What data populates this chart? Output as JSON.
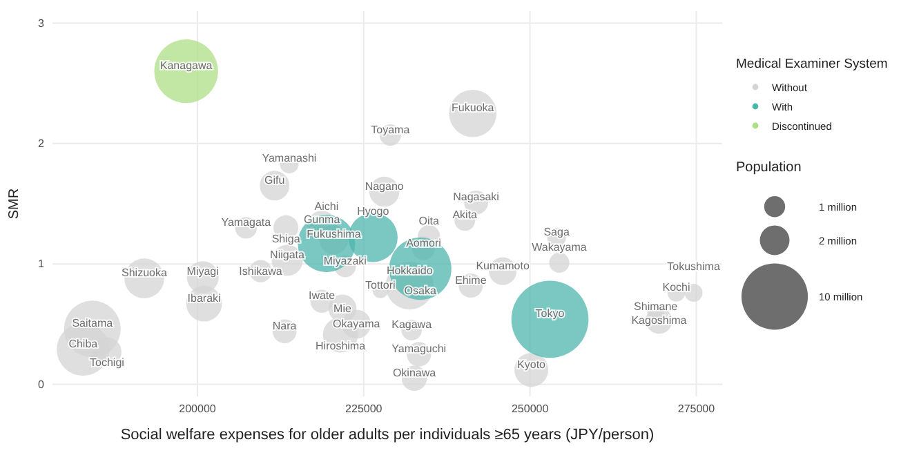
{
  "chart_data": {
    "type": "bubble",
    "xlabel": "Social welfare expenses for older adults per individuals ≥65 years (JPY/person)",
    "ylabel": "SMR",
    "legend_title": "Medical Examiner System",
    "legend": "right",
    "grid": true,
    "xlim": [
      178200,
      278900
    ],
    "xticks": [
      200000,
      225000,
      250000,
      275000
    ],
    "ylim": [
      -0.1,
      3.1
    ],
    "yticks": [
      0,
      1,
      2,
      3
    ],
    "size_legend": [
      {
        "value": 1,
        "label": "1 million"
      },
      {
        "value": 2,
        "label": "2 million"
      },
      {
        "value": 10,
        "label": "10 million"
      }
    ],
    "series": [
      {
        "name": "Without",
        "color": "#d4d4d4",
        "x": [
          213800,
          211600,
          229000,
          228100,
          207300,
          213300,
          218700,
          220500,
          222200,
          213500,
          209500,
          192000,
          200800,
          201000,
          184200,
          182800,
          186400,
          213100,
          218700,
          221800,
          223900,
          221500,
          227500,
          232200,
          233300,
          232600,
          231900,
          234000,
          234800,
          241400,
          241900,
          240200,
          245900,
          241100,
          254000,
          254400,
          250200,
          268900,
          269400,
          272000,
          274600
        ],
        "values": [
          1.83,
          1.65,
          2.07,
          1.6,
          1.3,
          1.3,
          1.32,
          1.2,
          0.98,
          1.03,
          0.94,
          0.88,
          0.89,
          0.67,
          0.46,
          0.29,
          0.27,
          0.44,
          0.69,
          0.63,
          0.5,
          0.41,
          0.78,
          0.45,
          0.25,
          0.05,
          0.82,
          1.13,
          1.23,
          2.25,
          1.51,
          1.36,
          0.94,
          0.82,
          1.22,
          1.01,
          0.12,
          0.6,
          0.53,
          0.76,
          0.76
        ],
        "sizes": [
          0.8,
          2,
          1.05,
          2.05,
          1.07,
          1.41,
          1.94,
          1.9,
          1.07,
          2.2,
          1.13,
          3.6,
          2.3,
          2.9,
          7.3,
          6.3,
          1.9,
          1.3,
          1.2,
          1.77,
          1.9,
          2.8,
          0.55,
          0.95,
          1.35,
          1.45,
          5.2,
          1.25,
          1.12,
          5.1,
          1.3,
          0.96,
          1.74,
          1.33,
          0.81,
          0.92,
          2.6,
          0.67,
          1.6,
          0.7,
          0.73
        ]
      },
      {
        "name": "With",
        "color": "#4db6ac",
        "x": [
          219400,
          226400,
          233500,
          253000
        ],
        "values": [
          1.17,
          1.22,
          0.96,
          0.54
        ],
        "sizes": [
          7.5,
          5.5,
          8.8,
          13.5
        ]
      },
      {
        "name": "Discontinued",
        "color": "#aede84",
        "x": [
          198300
        ],
        "values": [
          2.6
        ],
        "sizes": [
          9.2
        ]
      }
    ],
    "annotations": [
      "Population",
      {
        "text": "Yamanashi",
        "x": 213800,
        "y": 1.83
      },
      {
        "text": "Gifu",
        "x": 211600,
        "y": 1.65
      },
      {
        "text": "Toyama",
        "x": 229000,
        "y": 2.07
      },
      {
        "text": "Nagano",
        "x": 228100,
        "y": 1.6
      },
      {
        "text": "Yamagata",
        "x": 207300,
        "y": 1.3
      },
      {
        "text": "Shiga",
        "x": 213300,
        "y": 1.3
      },
      {
        "text": "Gunma",
        "x": 218700,
        "y": 1.32
      },
      {
        "text": "Fukushima",
        "x": 220500,
        "y": 1.2
      },
      {
        "text": "Miyazaki",
        "x": 222200,
        "y": 0.98
      },
      {
        "text": "Niigata",
        "x": 213500,
        "y": 1.03
      },
      {
        "text": "Ishikawa",
        "x": 209500,
        "y": 0.94
      },
      {
        "text": "Shizuoka",
        "x": 192000,
        "y": 0.88
      },
      {
        "text": "Miyagi",
        "x": 200800,
        "y": 0.89
      },
      {
        "text": "Ibaraki",
        "x": 201000,
        "y": 0.67
      },
      {
        "text": "Saitama",
        "x": 184200,
        "y": 0.46
      },
      {
        "text": "Chiba",
        "x": 182800,
        "y": 0.29
      },
      {
        "text": "Tochigi",
        "x": 186400,
        "y": 0.27
      },
      {
        "text": "Nara",
        "x": 213100,
        "y": 0.44
      },
      {
        "text": "Iwate",
        "x": 218700,
        "y": 0.69
      },
      {
        "text": "Mie",
        "x": 221800,
        "y": 0.63
      },
      {
        "text": "Okayama",
        "x": 223900,
        "y": 0.5
      },
      {
        "text": "Hiroshima",
        "x": 221500,
        "y": 0.41
      },
      {
        "text": "Tottori",
        "x": 227500,
        "y": 0.78
      },
      {
        "text": "Kagawa",
        "x": 232200,
        "y": 0.45
      },
      {
        "text": "Yamaguchi",
        "x": 233300,
        "y": 0.25
      },
      {
        "text": "Okinawa",
        "x": 232600,
        "y": 0.05
      },
      {
        "text": "Hokkaido",
        "x": 231900,
        "y": 0.82
      },
      {
        "text": "Aomori",
        "x": 234000,
        "y": 1.13
      },
      {
        "text": "Oita",
        "x": 234800,
        "y": 1.23
      },
      {
        "text": "Fukuoka",
        "x": 241400,
        "y": 2.25
      },
      {
        "text": "Nagasaki",
        "x": 241900,
        "y": 1.51
      },
      {
        "text": "Akita",
        "x": 240200,
        "y": 1.36
      },
      {
        "text": "Kumamoto",
        "x": 245900,
        "y": 0.94
      },
      {
        "text": "Ehime",
        "x": 241100,
        "y": 0.82
      },
      {
        "text": "Saga",
        "x": 254000,
        "y": 1.22
      },
      {
        "text": "Wakayama",
        "x": 254400,
        "y": 1.01
      },
      {
        "text": "Kyoto",
        "x": 250200,
        "y": 0.12
      },
      {
        "text": "Shimane",
        "x": 268900,
        "y": 0.6
      },
      {
        "text": "Kagoshima",
        "x": 269400,
        "y": 0.53
      },
      {
        "text": "Kochi",
        "x": 272000,
        "y": 0.76
      },
      {
        "text": "Tokushima",
        "x": 274600,
        "y": 0.76
      },
      {
        "text": "Aichi",
        "x": 219400,
        "y": 1.17
      },
      {
        "text": "Hyogo",
        "x": 226400,
        "y": 1.22
      },
      {
        "text": "Osaka",
        "x": 233500,
        "y": 0.96
      },
      {
        "text": "Tokyo",
        "x": 253000,
        "y": 0.54
      },
      {
        "text": "Kanagawa",
        "x": 198300,
        "y": 2.6
      }
    ]
  }
}
